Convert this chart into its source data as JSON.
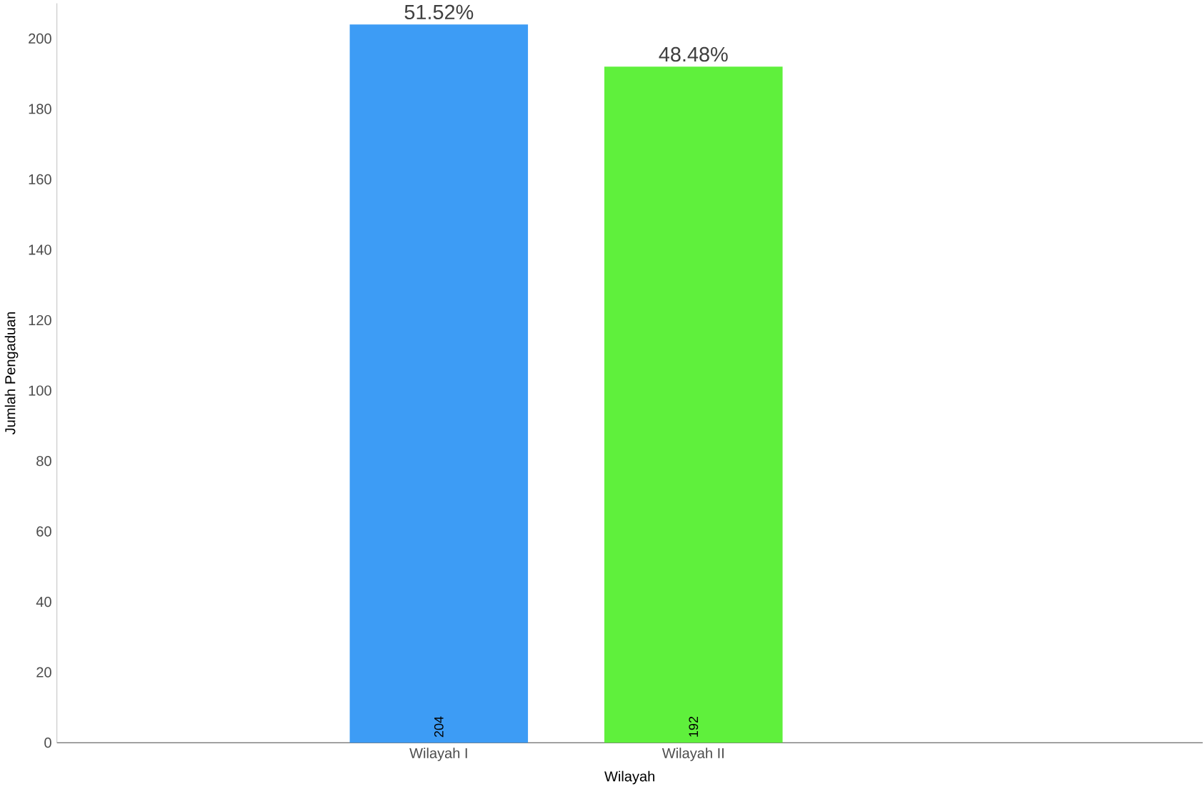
{
  "chart_data": {
    "type": "bar",
    "xlabel": "Wilayah",
    "ylabel": "Jumlah Pengaduan",
    "categories": [
      "Wilayah I",
      "Wilayah II"
    ],
    "values": [
      204,
      192
    ],
    "colors": [
      "#3d9cf5",
      "#5ff03c"
    ],
    "data_labels": true,
    "ylim": [
      0,
      210
    ],
    "yticks": [
      0,
      20,
      40,
      60,
      80,
      100,
      120,
      140,
      160,
      180,
      200
    ],
    "annotations": [
      "51.52%",
      "48.48%"
    ]
  }
}
